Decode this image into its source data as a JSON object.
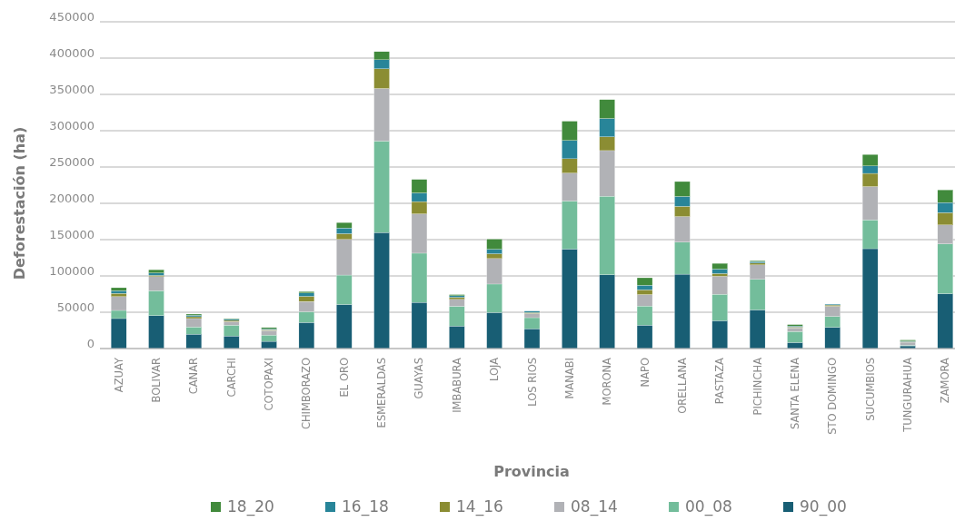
{
  "chart_data": {
    "type": "bar",
    "stacked": true,
    "xlabel": "Provincia",
    "ylabel": "Deforestación (ha)",
    "categories": [
      "AZUAY",
      "BOLIVAR",
      "CANAR",
      "CARCHI",
      "COTOPAXI",
      "CHIMBORAZO",
      "EL ORO",
      "ESMERALDAS",
      "GUAYAS",
      "IMBABURA",
      "LOJA",
      "LOS RIOS",
      "MANABI",
      "MORONA",
      "NAPO",
      "ORELLANA",
      "PASTAZA",
      "PICHINCHA",
      "SANTA ELENA",
      "STO DOMINGO",
      "SUCUMBIOS",
      "TUNGURAHUA",
      "ZAMORA"
    ],
    "series": [
      {
        "name": "90_00",
        "color": "#185e74",
        "values": [
          41300,
          45400,
          19800,
          17300,
          9900,
          35900,
          60700,
          159800,
          63600,
          31000,
          49600,
          27300,
          137100,
          101600,
          32200,
          102400,
          38400,
          53300,
          8300,
          29300,
          137500,
          3700,
          75600
        ]
      },
      {
        "name": "00_08",
        "color": "#73bd9b",
        "values": [
          11200,
          34300,
          9900,
          14900,
          8700,
          14900,
          40500,
          126000,
          67700,
          27200,
          39200,
          15200,
          66100,
          108200,
          26400,
          44200,
          36400,
          42100,
          15200,
          14900,
          39700,
          1000,
          68500
        ]
      },
      {
        "name": "08_14",
        "color": "#b1b2b6",
        "values": [
          19000,
          19400,
          11600,
          5000,
          6200,
          14000,
          49100,
          72300,
          54100,
          9500,
          35100,
          5800,
          38400,
          62800,
          15700,
          35100,
          24700,
          19800,
          5000,
          14000,
          45800,
          4000,
          26100
        ]
      },
      {
        "name": "14_16",
        "color": "#8b8d33",
        "values": [
          4500,
          1700,
          2500,
          1600,
          1200,
          7100,
          7900,
          27200,
          17000,
          2900,
          6600,
          1300,
          19800,
          19000,
          6600,
          14100,
          3800,
          2500,
          1200,
          1700,
          18200,
          800,
          16900
        ]
      },
      {
        "name": "16_18",
        "color": "#288599",
        "values": [
          3700,
          3300,
          2000,
          1700,
          1300,
          4500,
          7800,
          12400,
          11900,
          2100,
          6200,
          2000,
          25200,
          25200,
          6200,
          13600,
          6100,
          2100,
          1300,
          1200,
          10300,
          800,
          14000
        ]
      },
      {
        "name": "18_20",
        "color": "#418a3c",
        "values": [
          4100,
          4500,
          1700,
          800,
          1600,
          2100,
          7500,
          11200,
          18600,
          1600,
          14000,
          null,
          26500,
          26000,
          10400,
          20600,
          7900,
          1200,
          2000,
          null,
          15700,
          1500,
          17400
        ]
      }
    ],
    "ylim": [
      0,
      450000
    ],
    "yticks": [
      0,
      50000,
      100000,
      150000,
      200000,
      250000,
      300000,
      350000,
      400000,
      450000
    ],
    "grid": "y",
    "legend": "bottom"
  }
}
